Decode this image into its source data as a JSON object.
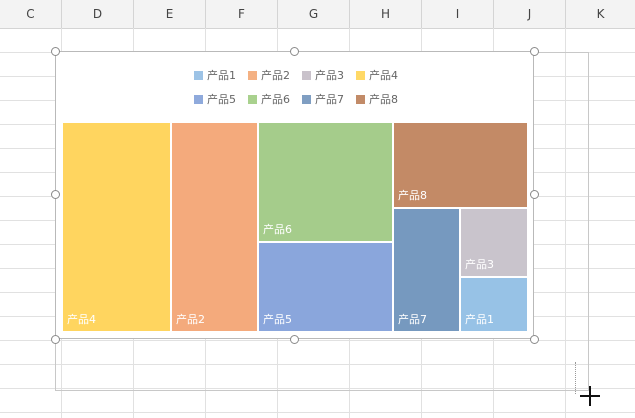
{
  "columns": [
    "C",
    "D",
    "E",
    "F",
    "G",
    "H",
    "I",
    "J",
    "K"
  ],
  "legend": [
    {
      "label": "产品1",
      "color": "#9dc3e6"
    },
    {
      "label": "产品2",
      "color": "#f4b183"
    },
    {
      "label": "产品3",
      "color": "#c9c2cb"
    },
    {
      "label": "产品4",
      "color": "#ffd966"
    },
    {
      "label": "产品5",
      "color": "#8faadc"
    },
    {
      "label": "产品6",
      "color": "#a9d18e"
    },
    {
      "label": "产品7",
      "color": "#7f9ec2"
    },
    {
      "label": "产品8",
      "color": "#c28b68"
    }
  ],
  "tiles": [
    {
      "label": "产品4",
      "color": "#ffd55f"
    },
    {
      "label": "产品2",
      "color": "#f4aa7c"
    },
    {
      "label": "产品6",
      "color": "#a5cc8b"
    },
    {
      "label": "产品5",
      "color": "#8aa6dc"
    },
    {
      "label": "产品8",
      "color": "#c38a66"
    },
    {
      "label": "产品7",
      "color": "#7699bf"
    },
    {
      "label": "产品3",
      "color": "#c9c4cc"
    },
    {
      "label": "产品1",
      "color": "#97c2e6"
    }
  ]
}
